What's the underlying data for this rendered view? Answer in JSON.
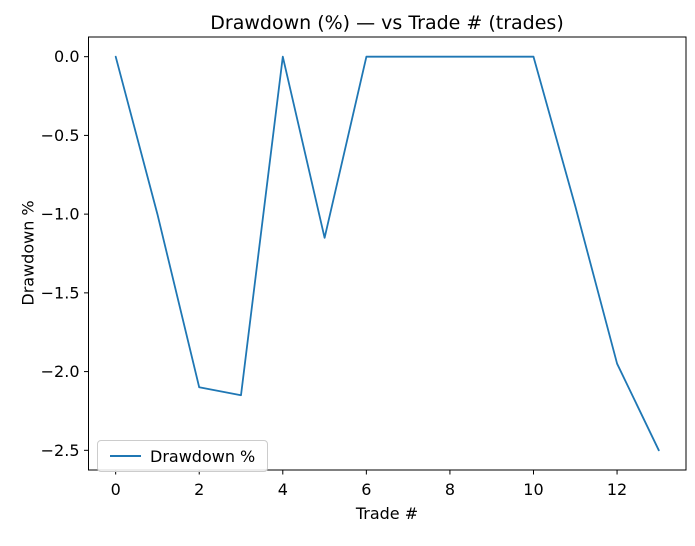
{
  "figure": {
    "title": "Drawdown (%) — vs Trade # (trades)"
  },
  "chart_data": {
    "type": "line",
    "title": "Drawdown (%) — vs Trade # (trades)",
    "xlabel": "Trade #",
    "ylabel": "Drawdown %",
    "x": [
      0,
      1,
      2,
      3,
      4,
      5,
      6,
      7,
      8,
      9,
      10,
      11,
      12,
      13
    ],
    "series": [
      {
        "name": "Drawdown %",
        "color": "#1f77b4",
        "values": [
          0.0,
          -1.0,
          -2.1,
          -2.15,
          0.0,
          -1.15,
          0.0,
          0.0,
          0.0,
          0.0,
          0.0,
          -0.95,
          -1.95,
          -2.5
        ]
      }
    ],
    "xticks": {
      "values": [
        0,
        2,
        4,
        6,
        8,
        10,
        12
      ],
      "labels": [
        "0",
        "2",
        "4",
        "6",
        "8",
        "10",
        "12"
      ]
    },
    "yticks": {
      "values": [
        0.0,
        -0.5,
        -1.0,
        -1.5,
        -2.0,
        -2.5
      ],
      "labels": [
        "0.0",
        "−0.5",
        "−1.0",
        "−1.5",
        "−2.0",
        "−2.5"
      ]
    },
    "xlim": [
      -0.65,
      13.65
    ],
    "ylim": [
      -2.625,
      0.125
    ],
    "grid": false,
    "legend": {
      "position": "lower left",
      "entries": [
        "Drawdown %"
      ]
    },
    "axis_color": "#000000",
    "background_color": "#ffffff"
  }
}
